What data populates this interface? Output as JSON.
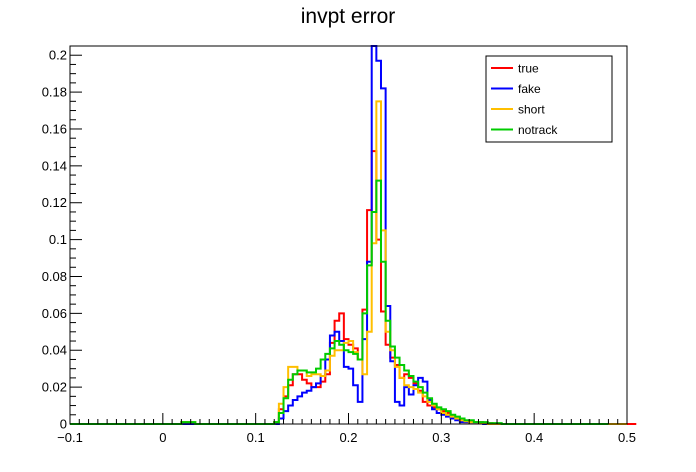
{
  "chart_data": {
    "type": "step-histogram",
    "title": "invpt error",
    "xlabel": "",
    "ylabel": "",
    "xlim": [
      -0.1,
      0.5
    ],
    "ylim": [
      0,
      0.205
    ],
    "grid": false,
    "legend_position": "top-right",
    "x_tick_labels": [
      "−0.1",
      "0",
      "0.1",
      "0.2",
      "0.3",
      "0.4",
      "0.5"
    ],
    "y_tick_labels": [
      "0",
      "0.02",
      "0.04",
      "0.06",
      "0.08",
      "0.1",
      "0.12",
      "0.14",
      "0.16",
      "0.18",
      "0.2"
    ],
    "bin_start": -0.1,
    "bin_width": 0.005,
    "series": [
      {
        "name": "true",
        "color": "#ff0000",
        "values": [
          0,
          0,
          0,
          0,
          0,
          0,
          0,
          0,
          0,
          0,
          0,
          0,
          0,
          0,
          0,
          0,
          0,
          0,
          0,
          0,
          0,
          0,
          0,
          0,
          0.001,
          0.001,
          0,
          0,
          0,
          0,
          0,
          0,
          0,
          0,
          0,
          0,
          0,
          0,
          0,
          0,
          0,
          0,
          0,
          0,
          0.001,
          0.008,
          0.015,
          0.021,
          0.027,
          0.027,
          0.024,
          0.022,
          0.02,
          0.02,
          0.023,
          0.027,
          0.044,
          0.056,
          0.06,
          0.046,
          0.043,
          0.041,
          0.035,
          0.062,
          0.116,
          0.148,
          0.1,
          0.061,
          0.043,
          0.036,
          0.032,
          0.025,
          0.027,
          0.025,
          0.022,
          0.018,
          0.012,
          0.01,
          0.009,
          0.008,
          0.007,
          0.006,
          0.004,
          0.003,
          0.002,
          0.001,
          0.001,
          0.001,
          0.001,
          0.0005,
          0.0005,
          0,
          0,
          0,
          0,
          0,
          0,
          0,
          0,
          0,
          0,
          0,
          0,
          0,
          0,
          0,
          0,
          0,
          0,
          0,
          0,
          0,
          0,
          0,
          0,
          0,
          0,
          0,
          0,
          0,
          0,
          0
        ]
      },
      {
        "name": "fake",
        "color": "#0000ff",
        "values": [
          0,
          0,
          0,
          0,
          0,
          0,
          0,
          0,
          0,
          0,
          0,
          0,
          0,
          0,
          0,
          0,
          0,
          0,
          0,
          0,
          0,
          0,
          0,
          0,
          0,
          0,
          0,
          0,
          0,
          0,
          0,
          0,
          0,
          0,
          0,
          0,
          0,
          0,
          0,
          0,
          0,
          0,
          0,
          0,
          0,
          0.003,
          0.007,
          0.01,
          0.013,
          0.015,
          0.017,
          0.018,
          0.02,
          0.022,
          0.026,
          0.035,
          0.048,
          0.05,
          0.045,
          0.031,
          0.03,
          0.021,
          0.012,
          0.046,
          0.088,
          0.205,
          0.197,
          0.182,
          0.064,
          0.034,
          0.012,
          0.01,
          0.02,
          0.016,
          0.021,
          0.025,
          0.023,
          0.013,
          0.008,
          0.006,
          0.005,
          0.004,
          0.003,
          0.002,
          0.001,
          0.001,
          0.001,
          0.001,
          0.0005,
          0,
          0,
          0,
          0,
          0,
          0,
          0,
          0,
          0,
          0,
          0,
          0,
          0,
          0,
          0,
          0,
          0,
          0,
          0,
          0,
          0,
          0,
          0,
          0,
          0,
          0,
          0,
          0,
          0,
          0,
          0
        ]
      },
      {
        "name": "short",
        "color": "#ffbf00",
        "values": [
          0,
          0,
          0,
          0,
          0,
          0,
          0,
          0,
          0,
          0,
          0,
          0,
          0,
          0,
          0,
          0,
          0,
          0,
          0,
          0,
          0,
          0,
          0,
          0,
          0.001,
          0.001,
          0.001,
          0,
          0,
          0,
          0,
          0,
          0,
          0,
          0,
          0,
          0,
          0,
          0,
          0,
          0,
          0,
          0,
          0,
          0.001,
          0.011,
          0.02,
          0.031,
          0.031,
          0.029,
          0.029,
          0.026,
          0.027,
          0.027,
          0.026,
          0.029,
          0.037,
          0.04,
          0.04,
          0.044,
          0.045,
          0.039,
          0.035,
          0.027,
          0.05,
          0.098,
          0.175,
          0.105,
          0.05,
          0.04,
          0.031,
          0.025,
          0.021,
          0.02,
          0.019,
          0.017,
          0.015,
          0.012,
          0.01,
          0.008,
          0.006,
          0.005,
          0.004,
          0.003,
          0.002,
          0.0015,
          0.001,
          0.001,
          0.0005,
          0.0005,
          0,
          0,
          0,
          0,
          0,
          0,
          0,
          0,
          0,
          0,
          0,
          0,
          0,
          0,
          0,
          0,
          0,
          0,
          0,
          0,
          0,
          0,
          0,
          0,
          0,
          0,
          0,
          0,
          0,
          0
        ]
      },
      {
        "name": "notrack",
        "color": "#00cc00",
        "values": [
          0,
          0,
          0,
          0,
          0,
          0,
          0,
          0,
          0,
          0,
          0,
          0,
          0,
          0,
          0,
          0,
          0,
          0,
          0,
          0,
          0,
          0,
          0,
          0,
          0.001,
          0.001,
          0.001,
          0,
          0,
          0,
          0,
          0,
          0,
          0,
          0,
          0,
          0,
          0,
          0,
          0,
          0,
          0,
          0,
          0,
          0.001,
          0.006,
          0.014,
          0.024,
          0.027,
          0.029,
          0.029,
          0.028,
          0.028,
          0.03,
          0.035,
          0.038,
          0.041,
          0.045,
          0.043,
          0.04,
          0.039,
          0.038,
          0.035,
          0.06,
          0.086,
          0.115,
          0.132,
          0.088,
          0.056,
          0.042,
          0.036,
          0.032,
          0.029,
          0.026,
          0.023,
          0.02,
          0.017,
          0.014,
          0.011,
          0.009,
          0.008,
          0.007,
          0.005,
          0.004,
          0.003,
          0.002,
          0.002,
          0.001,
          0.001,
          0.001,
          0.0005,
          0.0005,
          0.0005,
          0,
          0,
          0,
          0,
          0,
          0,
          0,
          0,
          0,
          0,
          0,
          0,
          0,
          0,
          0,
          0,
          0,
          0,
          0,
          0,
          0,
          0,
          0
        ]
      }
    ]
  }
}
